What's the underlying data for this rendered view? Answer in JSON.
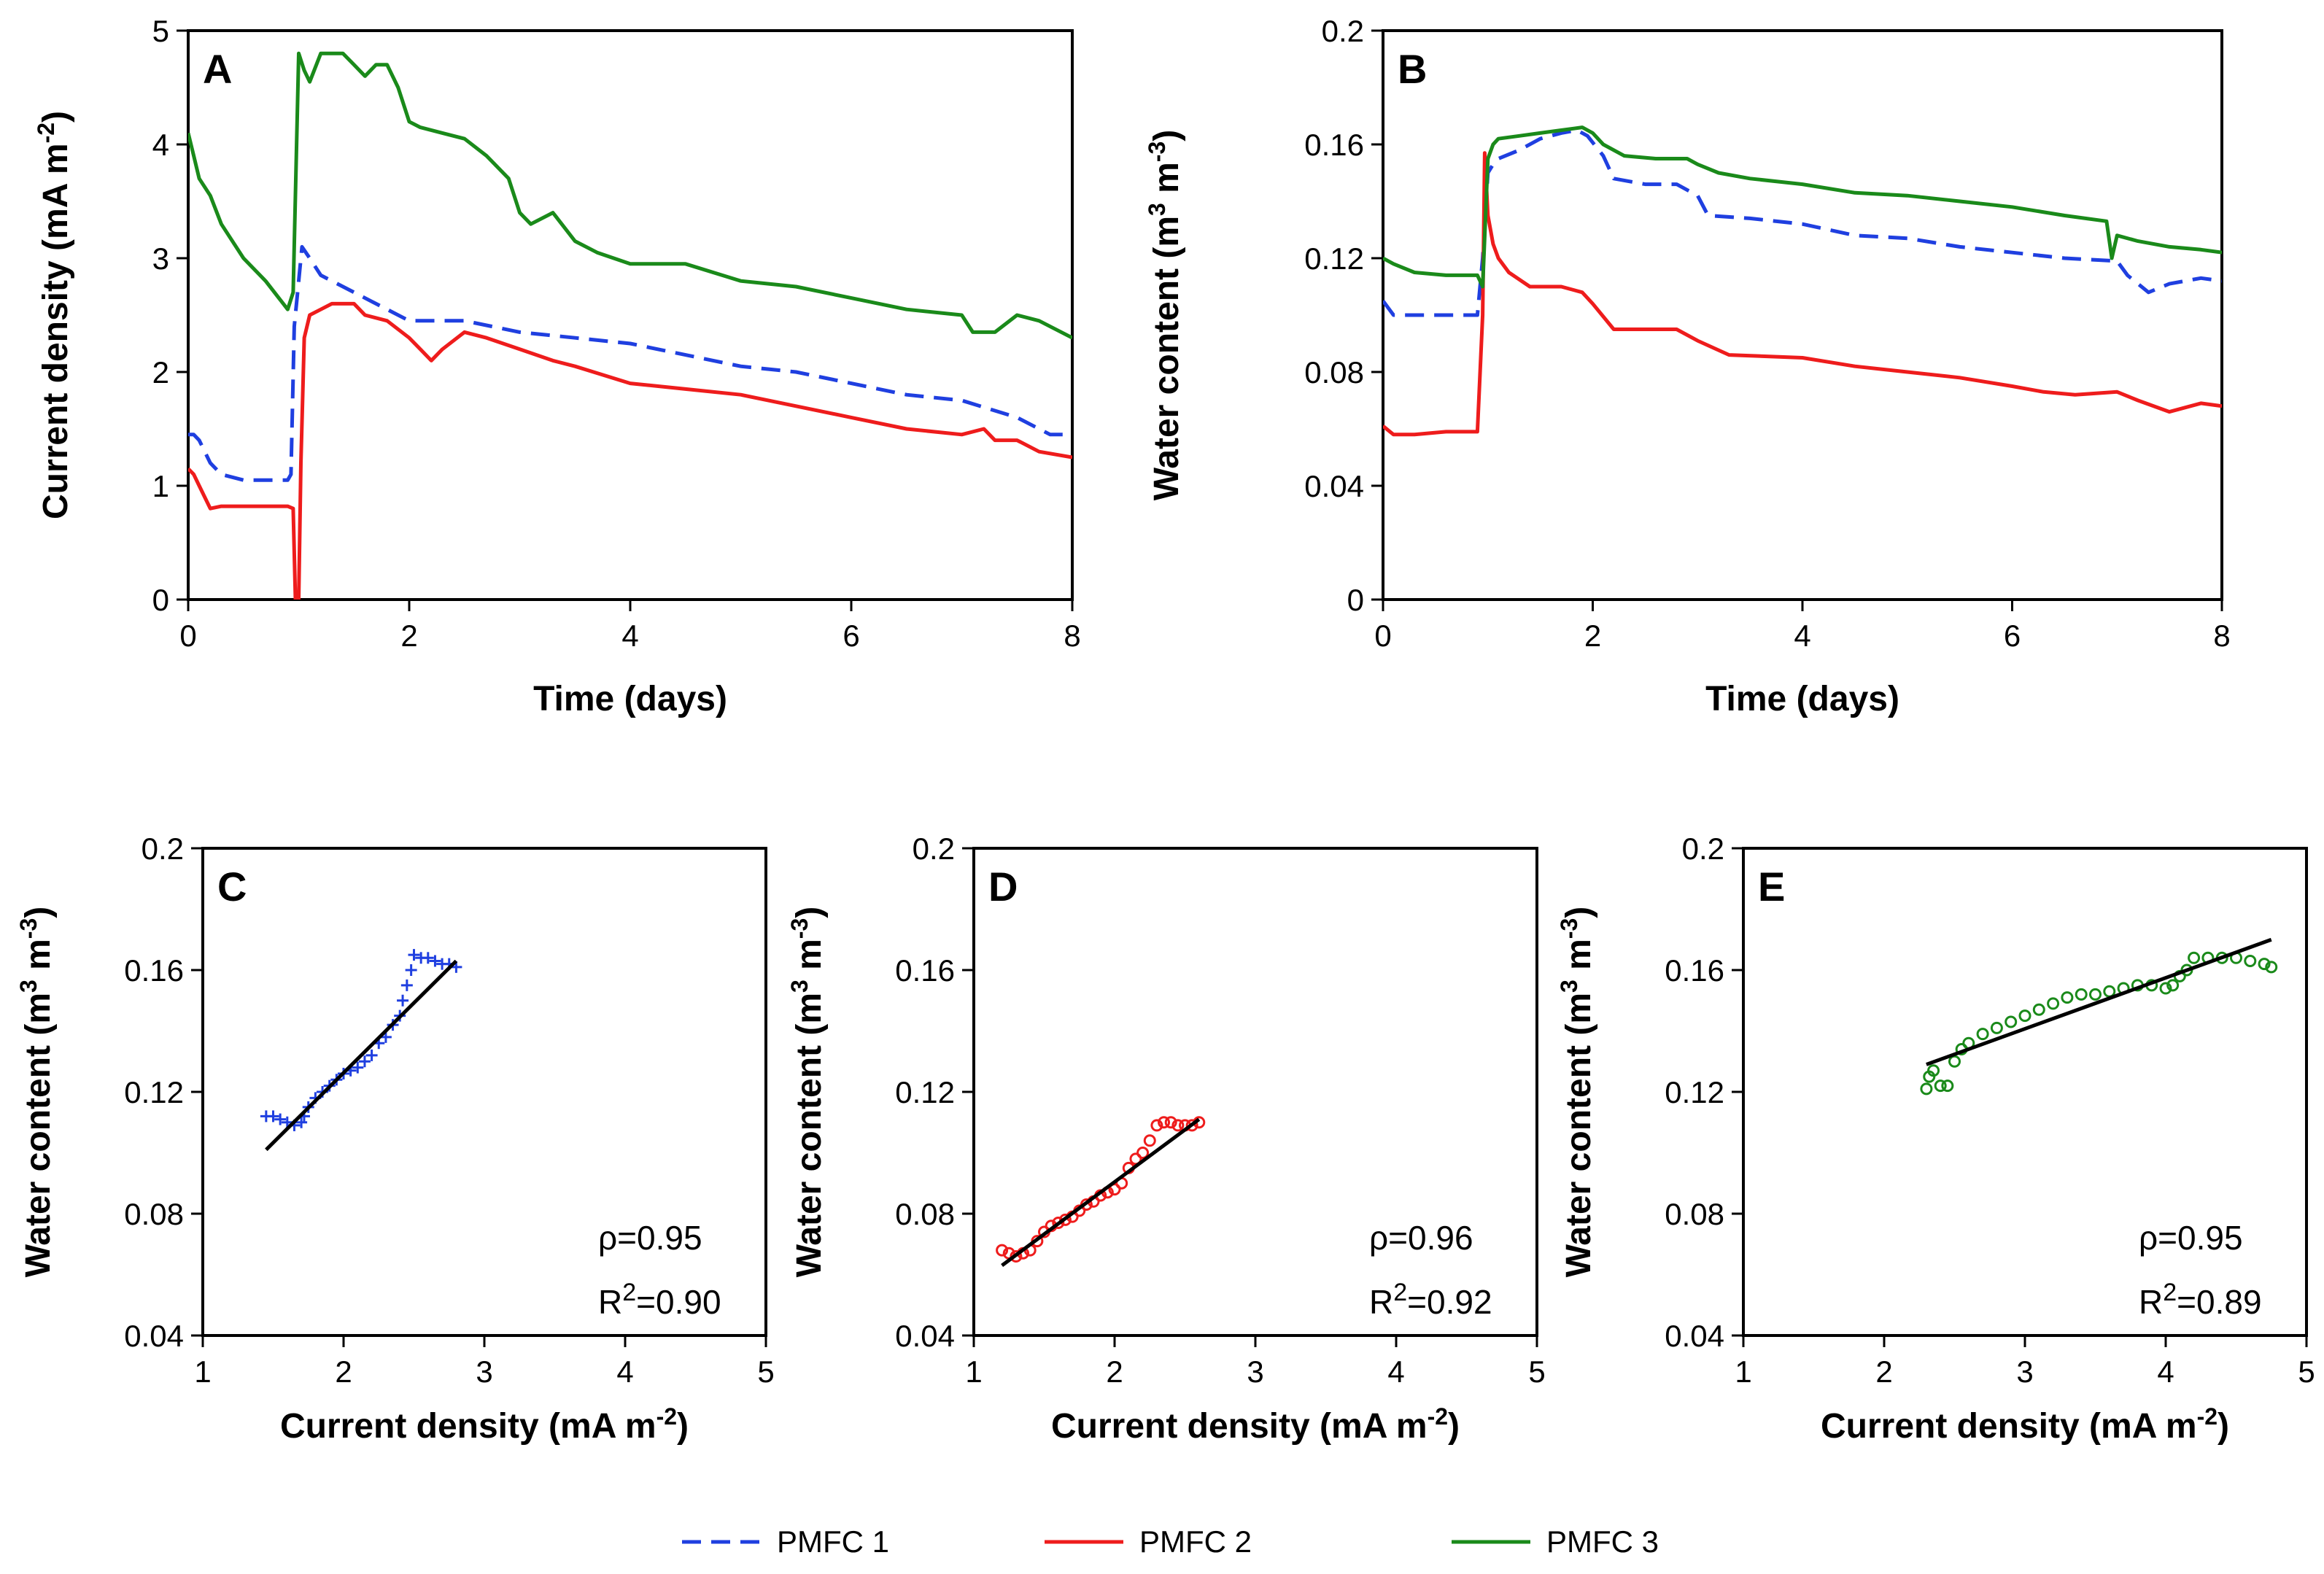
{
  "colors": {
    "pmfc1": "#1f3fe0",
    "pmfc2": "#ee1c1c",
    "pmfc3": "#1a8a1a",
    "fit": "#000000"
  },
  "legend": [
    {
      "label": "PMFC 1",
      "style": "dashed",
      "color": "#1f3fe0"
    },
    {
      "label": "PMFC 2",
      "style": "solid",
      "color": "#ee1c1c"
    },
    {
      "label": "PMFC 3",
      "style": "solid",
      "color": "#1a8a1a"
    }
  ],
  "chart_data": [
    {
      "panel": "A",
      "type": "line",
      "xlabel": "Time (days)",
      "ylabel": "Current density (mA m-2)",
      "ylabel_parts": [
        "Current density (mA m",
        "-2",
        ")"
      ],
      "xlim": [
        0,
        8
      ],
      "ylim": [
        0,
        5
      ],
      "xticks": [
        "0",
        "2",
        "4",
        "6",
        "8"
      ],
      "yticks": [
        "0",
        "1",
        "2",
        "3",
        "4",
        "5"
      ],
      "series": [
        {
          "name": "PMFC 1",
          "x": [
            0,
            0.05,
            0.1,
            0.15,
            0.2,
            0.3,
            0.5,
            0.7,
            0.9,
            0.93,
            0.96,
            1.0,
            1.03,
            1.1,
            1.2,
            1.3,
            1.5,
            1.7,
            2.0,
            2.5,
            3.0,
            3.5,
            4.0,
            4.5,
            5.0,
            5.5,
            6.0,
            6.5,
            7.0,
            7.5,
            7.8,
            8.0
          ],
          "values": [
            1.45,
            1.45,
            1.4,
            1.3,
            1.2,
            1.1,
            1.05,
            1.05,
            1.05,
            1.1,
            2.4,
            2.8,
            3.1,
            3.0,
            2.85,
            2.8,
            2.7,
            2.6,
            2.45,
            2.45,
            2.35,
            2.3,
            2.25,
            2.15,
            2.05,
            2.0,
            1.9,
            1.8,
            1.75,
            1.6,
            1.45,
            1.45
          ]
        },
        {
          "name": "PMFC 2",
          "x": [
            0,
            0.05,
            0.1,
            0.15,
            0.2,
            0.3,
            0.5,
            0.7,
            0.9,
            0.95,
            0.97,
            1.0,
            1.02,
            1.05,
            1.1,
            1.2,
            1.3,
            1.4,
            1.5,
            1.6,
            1.8,
            2.0,
            2.1,
            2.2,
            2.3,
            2.5,
            2.7,
            3.0,
            3.3,
            3.5,
            4.0,
            4.5,
            5.0,
            5.5,
            6.0,
            6.5,
            7.0,
            7.2,
            7.3,
            7.5,
            7.7,
            8.0
          ],
          "values": [
            1.15,
            1.1,
            1.0,
            0.9,
            0.8,
            0.82,
            0.82,
            0.82,
            0.82,
            0.8,
            0.0,
            0.0,
            1.2,
            2.3,
            2.5,
            2.55,
            2.6,
            2.6,
            2.6,
            2.5,
            2.45,
            2.3,
            2.2,
            2.1,
            2.2,
            2.35,
            2.3,
            2.2,
            2.1,
            2.05,
            1.9,
            1.85,
            1.8,
            1.7,
            1.6,
            1.5,
            1.45,
            1.5,
            1.4,
            1.4,
            1.3,
            1.25
          ]
        },
        {
          "name": "PMFC 3",
          "x": [
            0,
            0.05,
            0.1,
            0.2,
            0.3,
            0.5,
            0.7,
            0.9,
            0.95,
            1.0,
            1.05,
            1.1,
            1.2,
            1.3,
            1.4,
            1.5,
            1.6,
            1.7,
            1.8,
            1.9,
            2.0,
            2.1,
            2.3,
            2.5,
            2.7,
            2.9,
            3.0,
            3.1,
            3.3,
            3.5,
            3.7,
            4.0,
            4.5,
            5.0,
            5.5,
            6.0,
            6.5,
            7.0,
            7.1,
            7.3,
            7.5,
            7.7,
            8.0
          ],
          "values": [
            4.1,
            3.9,
            3.7,
            3.55,
            3.3,
            3.0,
            2.8,
            2.55,
            2.7,
            4.8,
            4.65,
            4.55,
            4.8,
            4.8,
            4.8,
            4.7,
            4.6,
            4.7,
            4.7,
            4.5,
            4.2,
            4.15,
            4.1,
            4.05,
            3.9,
            3.7,
            3.4,
            3.3,
            3.4,
            3.15,
            3.05,
            2.95,
            2.95,
            2.8,
            2.75,
            2.65,
            2.55,
            2.5,
            2.35,
            2.35,
            2.5,
            2.45,
            2.3
          ]
        }
      ]
    },
    {
      "panel": "B",
      "type": "line",
      "xlabel": "Time (days)",
      "ylabel": "Water content (m3 m-3)",
      "ylabel_parts": [
        "Water content (m",
        "3",
        " m",
        "-3",
        ")"
      ],
      "xlim": [
        0,
        8
      ],
      "ylim": [
        0,
        0.2
      ],
      "xticks": [
        "0",
        "2",
        "4",
        "6",
        "8"
      ],
      "yticks": [
        "0",
        "0.04",
        "0.08",
        "0.12",
        "0.16",
        "0.2"
      ],
      "series": [
        {
          "name": "PMFC 1",
          "x": [
            0,
            0.1,
            0.3,
            0.6,
            0.9,
            0.95,
            1.0,
            1.05,
            1.1,
            1.3,
            1.5,
            1.7,
            1.85,
            1.95,
            2.1,
            2.2,
            2.5,
            2.8,
            3.0,
            3.1,
            3.5,
            4.0,
            4.5,
            5.0,
            5.5,
            6.0,
            6.5,
            7.0,
            7.1,
            7.3,
            7.5,
            7.8,
            8.0
          ],
          "values": [
            0.105,
            0.1,
            0.1,
            0.1,
            0.1,
            0.12,
            0.15,
            0.153,
            0.155,
            0.158,
            0.162,
            0.164,
            0.165,
            0.163,
            0.156,
            0.148,
            0.146,
            0.146,
            0.142,
            0.135,
            0.134,
            0.132,
            0.128,
            0.127,
            0.124,
            0.122,
            0.12,
            0.119,
            0.114,
            0.108,
            0.111,
            0.113,
            0.112
          ]
        },
        {
          "name": "PMFC 2",
          "x": [
            0,
            0.1,
            0.3,
            0.6,
            0.9,
            0.95,
            0.97,
            1.0,
            1.05,
            1.1,
            1.2,
            1.4,
            1.7,
            1.9,
            2.0,
            2.2,
            2.5,
            2.8,
            3.0,
            3.3,
            4.0,
            4.5,
            5.0,
            5.5,
            6.0,
            6.3,
            6.6,
            7.0,
            7.2,
            7.5,
            7.8,
            8.0
          ],
          "values": [
            0.061,
            0.058,
            0.058,
            0.059,
            0.059,
            0.1,
            0.157,
            0.135,
            0.125,
            0.12,
            0.115,
            0.11,
            0.11,
            0.108,
            0.104,
            0.095,
            0.095,
            0.095,
            0.091,
            0.086,
            0.085,
            0.082,
            0.08,
            0.078,
            0.075,
            0.073,
            0.072,
            0.073,
            0.07,
            0.066,
            0.069,
            0.068
          ]
        },
        {
          "name": "PMFC 3",
          "x": [
            0,
            0.1,
            0.3,
            0.6,
            0.9,
            0.95,
            1.0,
            1.05,
            1.1,
            1.3,
            1.5,
            1.7,
            1.9,
            2.0,
            2.1,
            2.3,
            2.6,
            2.9,
            3.0,
            3.2,
            3.5,
            4.0,
            4.5,
            5.0,
            5.5,
            6.0,
            6.5,
            6.9,
            6.95,
            7.0,
            7.2,
            7.5,
            7.8,
            8.0
          ],
          "values": [
            0.12,
            0.118,
            0.115,
            0.114,
            0.114,
            0.11,
            0.155,
            0.16,
            0.162,
            0.163,
            0.164,
            0.165,
            0.166,
            0.164,
            0.16,
            0.156,
            0.155,
            0.155,
            0.153,
            0.15,
            0.148,
            0.146,
            0.143,
            0.142,
            0.14,
            0.138,
            0.135,
            0.133,
            0.12,
            0.128,
            0.126,
            0.124,
            0.123,
            0.122
          ]
        }
      ]
    },
    {
      "panel": "C",
      "type": "scatter",
      "xlabel": "Current density (mA m-2)",
      "ylabel": "Water content (m3 m-3)",
      "xlabel_parts": [
        "Current density (mA m",
        "-2",
        ")"
      ],
      "ylabel_parts": [
        "Water content (m",
        "3",
        " m",
        "-3",
        ")"
      ],
      "xlim": [
        1,
        5
      ],
      "ylim": [
        0.04,
        0.2
      ],
      "xticks": [
        "1",
        "2",
        "3",
        "4",
        "5"
      ],
      "yticks": [
        "0.04",
        "0.08",
        "0.12",
        "0.16",
        "0.2"
      ],
      "series_name": "PMFC 1",
      "marker": "plus",
      "x": [
        1.45,
        1.5,
        1.55,
        1.6,
        1.65,
        1.7,
        1.72,
        1.75,
        1.8,
        1.85,
        1.9,
        1.95,
        2.0,
        2.05,
        2.1,
        2.15,
        2.2,
        2.25,
        2.3,
        2.35,
        2.4,
        2.42,
        2.45,
        2.48,
        2.5,
        2.55,
        2.6,
        2.65,
        2.7,
        2.75,
        2.8
      ],
      "y": [
        0.112,
        0.112,
        0.111,
        0.11,
        0.109,
        0.11,
        0.112,
        0.115,
        0.118,
        0.12,
        0.122,
        0.124,
        0.126,
        0.127,
        0.128,
        0.13,
        0.132,
        0.136,
        0.138,
        0.142,
        0.145,
        0.15,
        0.155,
        0.16,
        0.165,
        0.164,
        0.164,
        0.163,
        0.162,
        0.162,
        0.161
      ],
      "fit": {
        "x": [
          1.45,
          2.8
        ],
        "y": [
          0.101,
          0.163
        ]
      },
      "rho": "ρ=0.95",
      "r2_prefix": "R",
      "r2_sup": "2",
      "r2_value": "=0.90"
    },
    {
      "panel": "D",
      "type": "scatter",
      "xlabel": "Current density (mA m-2)",
      "ylabel": "Water content (m3 m-3)",
      "xlabel_parts": [
        "Current density (mA m",
        "-2",
        ")"
      ],
      "ylabel_parts": [
        "Water content (m",
        "3",
        " m",
        "-3",
        ")"
      ],
      "xlim": [
        1,
        5
      ],
      "ylim": [
        0.04,
        0.2
      ],
      "xticks": [
        "1",
        "2",
        "3",
        "4",
        "5"
      ],
      "yticks": [
        "0.04",
        "0.08",
        "0.12",
        "0.16",
        "0.2"
      ],
      "series_name": "PMFC 2",
      "marker": "circle",
      "x": [
        1.2,
        1.25,
        1.3,
        1.35,
        1.4,
        1.45,
        1.5,
        1.55,
        1.6,
        1.65,
        1.7,
        1.75,
        1.8,
        1.85,
        1.9,
        1.95,
        2.0,
        2.05,
        2.1,
        2.15,
        2.2,
        2.25,
        2.3,
        2.35,
        2.4,
        2.45,
        2.5,
        2.55,
        2.6
      ],
      "y": [
        0.068,
        0.067,
        0.066,
        0.067,
        0.068,
        0.071,
        0.074,
        0.076,
        0.077,
        0.078,
        0.079,
        0.081,
        0.083,
        0.084,
        0.086,
        0.087,
        0.088,
        0.09,
        0.095,
        0.098,
        0.1,
        0.104,
        0.109,
        0.11,
        0.11,
        0.109,
        0.109,
        0.109,
        0.11
      ],
      "fit": {
        "x": [
          1.2,
          2.6
        ],
        "y": [
          0.063,
          0.111
        ]
      },
      "rho": "ρ=0.96",
      "r2_prefix": "R",
      "r2_sup": "2",
      "r2_value": "=0.92"
    },
    {
      "panel": "E",
      "type": "scatter",
      "xlabel": "Current density (mA m-2)",
      "ylabel": "Water content (m3 m-3)",
      "xlabel_parts": [
        "Current density (mA m",
        "-2",
        ")"
      ],
      "ylabel_parts": [
        "Water content (m",
        "3",
        " m",
        "-3",
        ")"
      ],
      "xlim": [
        1,
        5
      ],
      "ylim": [
        0.04,
        0.2
      ],
      "xticks": [
        "1",
        "2",
        "3",
        "4",
        "5"
      ],
      "yticks": [
        "0.04",
        "0.08",
        "0.12",
        "0.16",
        "0.2"
      ],
      "series_name": "PMFC 3",
      "marker": "circle",
      "x": [
        2.3,
        2.32,
        2.35,
        2.4,
        2.45,
        2.5,
        2.55,
        2.6,
        2.7,
        2.8,
        2.9,
        3.0,
        3.1,
        3.2,
        3.3,
        3.4,
        3.5,
        3.6,
        3.7,
        3.8,
        3.9,
        4.0,
        4.05,
        4.1,
        4.15,
        4.2,
        4.3,
        4.4,
        4.5,
        4.6,
        4.7,
        4.75
      ],
      "y": [
        0.121,
        0.125,
        0.127,
        0.122,
        0.122,
        0.13,
        0.134,
        0.136,
        0.139,
        0.141,
        0.143,
        0.145,
        0.147,
        0.149,
        0.151,
        0.152,
        0.152,
        0.153,
        0.154,
        0.155,
        0.155,
        0.154,
        0.155,
        0.158,
        0.16,
        0.164,
        0.164,
        0.164,
        0.164,
        0.163,
        0.162,
        0.161
      ],
      "fit": {
        "x": [
          2.3,
          4.75
        ],
        "y": [
          0.129,
          0.17
        ]
      },
      "rho": "ρ=0.95",
      "r2_prefix": "R",
      "r2_sup": "2",
      "r2_value": "=0.89"
    }
  ]
}
